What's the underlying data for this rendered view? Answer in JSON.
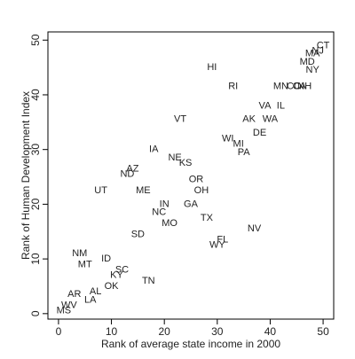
{
  "chart_data": {
    "type": "scatter",
    "xlabel": "Rank of average state income in 2000",
    "ylabel": "Rank of Human Development Index",
    "xlim": [
      -2,
      52
    ],
    "ylim": [
      -1,
      51.5
    ],
    "xticks": [
      0,
      10,
      20,
      30,
      40,
      50
    ],
    "yticks": [
      0,
      10,
      20,
      30,
      40,
      50
    ],
    "grid": false,
    "legend": "none",
    "colors": {
      "text": "#222222",
      "axis": "#000000"
    },
    "points": [
      {
        "label": "CT",
        "x": 50,
        "y": 49
      },
      {
        "label": "NJ",
        "x": 49,
        "y": 48
      },
      {
        "label": "MA",
        "x": 48,
        "y": 47.5
      },
      {
        "label": "MD",
        "x": 47,
        "y": 46
      },
      {
        "label": "NY",
        "x": 48,
        "y": 44.5
      },
      {
        "label": "HI",
        "x": 29,
        "y": 45
      },
      {
        "label": "RI",
        "x": 33,
        "y": 41.5
      },
      {
        "label": "MN",
        "x": 42,
        "y": 41.5
      },
      {
        "label": "CO",
        "x": 44.5,
        "y": 41.5
      },
      {
        "label": "CA",
        "x": 45.5,
        "y": 41.5
      },
      {
        "label": "NH",
        "x": 46.5,
        "y": 41.5
      },
      {
        "label": "VA",
        "x": 39,
        "y": 38
      },
      {
        "label": "IL",
        "x": 42,
        "y": 38
      },
      {
        "label": "VT",
        "x": 23,
        "y": 35.5
      },
      {
        "label": "AK",
        "x": 36,
        "y": 35.5
      },
      {
        "label": "WA",
        "x": 40,
        "y": 35.5
      },
      {
        "label": "DE",
        "x": 38,
        "y": 33
      },
      {
        "label": "WI",
        "x": 32,
        "y": 32
      },
      {
        "label": "MI",
        "x": 34,
        "y": 31
      },
      {
        "label": "PA",
        "x": 35,
        "y": 29.5
      },
      {
        "label": "IA",
        "x": 18,
        "y": 30
      },
      {
        "label": "NE",
        "x": 22,
        "y": 28.5
      },
      {
        "label": "KS",
        "x": 24,
        "y": 27.5
      },
      {
        "label": "AZ",
        "x": 14,
        "y": 26.5
      },
      {
        "label": "ND",
        "x": 13,
        "y": 25.5
      },
      {
        "label": "OR",
        "x": 26,
        "y": 24.5
      },
      {
        "label": "UT",
        "x": 8,
        "y": 22.5
      },
      {
        "label": "ME",
        "x": 16,
        "y": 22.5
      },
      {
        "label": "OH",
        "x": 27,
        "y": 22.5
      },
      {
        "label": "IN",
        "x": 20,
        "y": 20
      },
      {
        "label": "GA",
        "x": 25,
        "y": 20
      },
      {
        "label": "NC",
        "x": 19,
        "y": 18.5
      },
      {
        "label": "TX",
        "x": 28,
        "y": 17.5
      },
      {
        "label": "MO",
        "x": 21,
        "y": 16.5
      },
      {
        "label": "NV",
        "x": 37,
        "y": 15.5
      },
      {
        "label": "SD",
        "x": 15,
        "y": 14.5
      },
      {
        "label": "FL",
        "x": 31,
        "y": 13.5
      },
      {
        "label": "WY",
        "x": 30,
        "y": 12.5
      },
      {
        "label": "NM",
        "x": 4,
        "y": 11
      },
      {
        "label": "ID",
        "x": 9,
        "y": 10
      },
      {
        "label": "MT",
        "x": 5,
        "y": 9
      },
      {
        "label": "SC",
        "x": 12,
        "y": 8
      },
      {
        "label": "KY",
        "x": 11,
        "y": 7
      },
      {
        "label": "TN",
        "x": 17,
        "y": 6
      },
      {
        "label": "OK",
        "x": 10,
        "y": 5
      },
      {
        "label": "AL",
        "x": 7,
        "y": 4
      },
      {
        "label": "AR",
        "x": 3,
        "y": 3.5
      },
      {
        "label": "LA",
        "x": 6,
        "y": 2.5
      },
      {
        "label": "WV",
        "x": 2,
        "y": 1.5
      },
      {
        "label": "MS",
        "x": 1,
        "y": 0.5
      }
    ]
  }
}
